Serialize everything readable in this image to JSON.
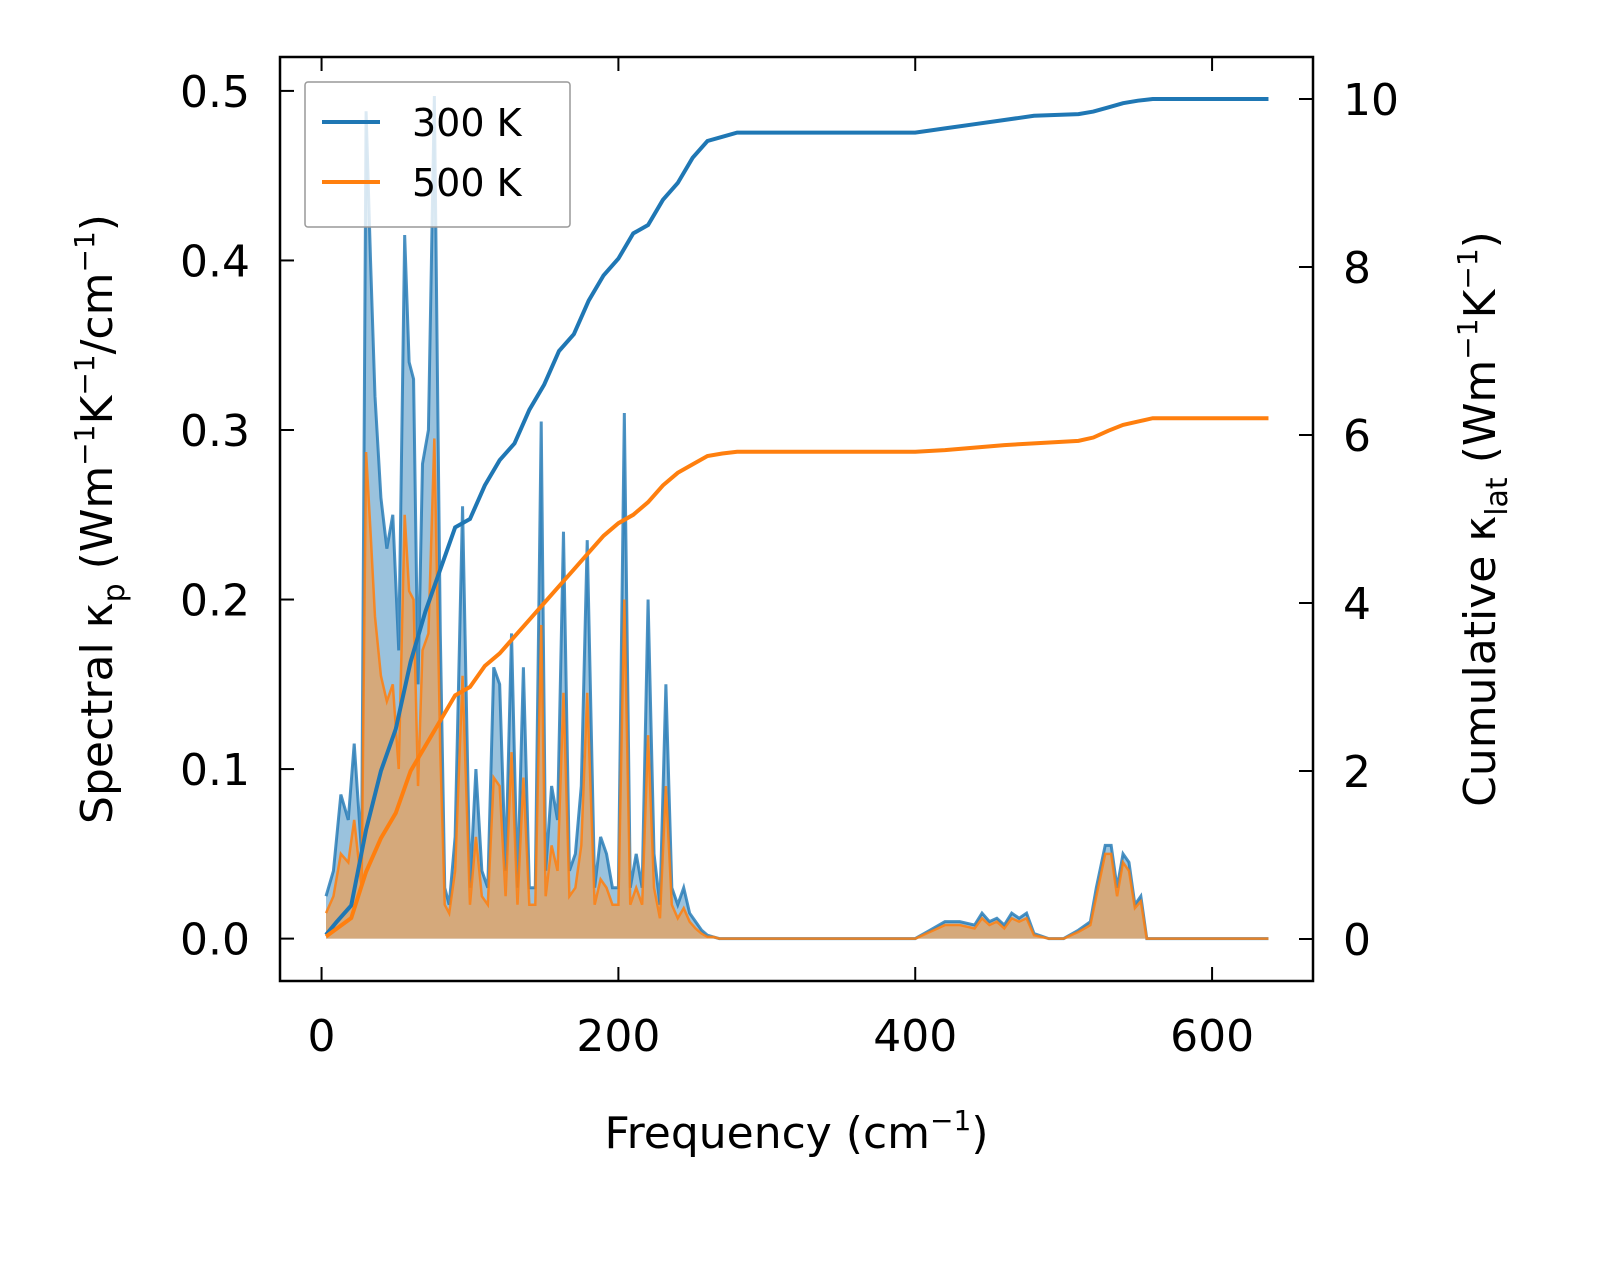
{
  "chart_data": {
    "type": "line",
    "xlabel": {
      "base": "Frequency (cm",
      "sup": "−1",
      "tail": ")"
    },
    "ylabel_left": {
      "pre": "Spectral κ",
      "sub": "p",
      "mid": " (Wm",
      "sup1": "−1",
      "k": "K",
      "sup2": "−1",
      "tail1": "/cm",
      "sup3": "−1",
      "tail2": ")"
    },
    "ylabel_right": {
      "pre": "Cumulative κ",
      "sub": "lat",
      "mid": " (Wm",
      "sup1": "−1",
      "k": "K",
      "sup2": "−1",
      "tail": ")"
    },
    "xlim": [
      -28,
      668
    ],
    "ylim_left": [
      -0.025,
      0.52
    ],
    "ylim_right": [
      -0.5,
      10.5
    ],
    "xticks": [
      0,
      200,
      400,
      600
    ],
    "xtick_labels": [
      "0",
      "200",
      "400",
      "600"
    ],
    "yticks_left": [
      0.0,
      0.1,
      0.2,
      0.3,
      0.4,
      0.5
    ],
    "ytick_labels_left": [
      "0.0",
      "0.1",
      "0.2",
      "0.3",
      "0.4",
      "0.5"
    ],
    "yticks_right": [
      0,
      2,
      4,
      6,
      8,
      10
    ],
    "ytick_labels_right": [
      "0",
      "2",
      "4",
      "6",
      "8",
      "10"
    ],
    "legend": {
      "position": "upper-left",
      "entries": [
        "300 K",
        "500 K"
      ]
    },
    "colors": {
      "300K": "#1f77b4",
      "500K": "#ff7f0e",
      "fill300": "#1f77b4",
      "fill500": "#e8a05a"
    },
    "spectral_300K": {
      "x": [
        3,
        8,
        13,
        18,
        22,
        27,
        30,
        33,
        36,
        40,
        44,
        48,
        52,
        56,
        59,
        62,
        65,
        68,
        72,
        76,
        80,
        83,
        86,
        90,
        95,
        100,
        104,
        108,
        112,
        116,
        120,
        124,
        128,
        132,
        136,
        140,
        144,
        148,
        151,
        155,
        159,
        163,
        167,
        171,
        175,
        179,
        184,
        188,
        192,
        196,
        200,
        204,
        208,
        212,
        216,
        220,
        224,
        228,
        232,
        236,
        240,
        244,
        248,
        252,
        256,
        260,
        264,
        268,
        272,
        276,
        282,
        290,
        300,
        320,
        400,
        410,
        420,
        430,
        440,
        445,
        450,
        455,
        460,
        465,
        470,
        475,
        480,
        490,
        500,
        510,
        518,
        522,
        528,
        532,
        536,
        540,
        544,
        548,
        552,
        556,
        560,
        570,
        600,
        638
      ],
      "y": [
        0.025,
        0.04,
        0.085,
        0.07,
        0.115,
        0.05,
        0.488,
        0.4,
        0.32,
        0.26,
        0.23,
        0.25,
        0.17,
        0.415,
        0.34,
        0.33,
        0.15,
        0.28,
        0.3,
        0.497,
        0.18,
        0.03,
        0.02,
        0.06,
        0.255,
        0.03,
        0.1,
        0.04,
        0.03,
        0.16,
        0.15,
        0.04,
        0.18,
        0.03,
        0.16,
        0.03,
        0.03,
        0.305,
        0.04,
        0.09,
        0.07,
        0.24,
        0.04,
        0.05,
        0.09,
        0.235,
        0.03,
        0.06,
        0.05,
        0.03,
        0.03,
        0.31,
        0.03,
        0.05,
        0.03,
        0.2,
        0.05,
        0.02,
        0.15,
        0.03,
        0.02,
        0.03,
        0.015,
        0.01,
        0.005,
        0.002,
        0.001,
        0.0,
        0.0,
        0.0,
        0.0,
        0.0,
        0.0,
        0.0,
        0.0,
        0.005,
        0.01,
        0.01,
        0.008,
        0.015,
        0.01,
        0.012,
        0.008,
        0.015,
        0.012,
        0.015,
        0.003,
        0.0,
        0.0,
        0.005,
        0.01,
        0.03,
        0.055,
        0.055,
        0.03,
        0.05,
        0.045,
        0.02,
        0.025,
        0.0,
        0.0,
        0.0,
        0.0,
        0.0
      ]
    },
    "spectral_500K": {
      "x": [
        3,
        8,
        13,
        18,
        22,
        27,
        30,
        33,
        36,
        40,
        44,
        48,
        52,
        56,
        59,
        62,
        65,
        68,
        72,
        76,
        80,
        83,
        86,
        90,
        95,
        100,
        104,
        108,
        112,
        116,
        120,
        124,
        128,
        132,
        136,
        140,
        144,
        148,
        151,
        155,
        159,
        163,
        167,
        171,
        175,
        179,
        184,
        188,
        192,
        196,
        200,
        204,
        208,
        212,
        216,
        220,
        224,
        228,
        232,
        236,
        240,
        244,
        248,
        252,
        256,
        260,
        264,
        268,
        272,
        276,
        282,
        290,
        300,
        320,
        400,
        410,
        420,
        430,
        440,
        445,
        450,
        455,
        460,
        465,
        470,
        475,
        480,
        490,
        500,
        510,
        518,
        522,
        528,
        532,
        536,
        540,
        544,
        548,
        552,
        556,
        560,
        570,
        600,
        638
      ],
      "y": [
        0.015,
        0.025,
        0.05,
        0.045,
        0.07,
        0.03,
        0.287,
        0.24,
        0.19,
        0.155,
        0.14,
        0.15,
        0.1,
        0.25,
        0.205,
        0.2,
        0.09,
        0.17,
        0.18,
        0.295,
        0.11,
        0.02,
        0.015,
        0.04,
        0.155,
        0.02,
        0.06,
        0.025,
        0.02,
        0.095,
        0.09,
        0.025,
        0.11,
        0.02,
        0.095,
        0.02,
        0.02,
        0.185,
        0.025,
        0.055,
        0.04,
        0.145,
        0.025,
        0.03,
        0.055,
        0.145,
        0.02,
        0.035,
        0.03,
        0.02,
        0.02,
        0.2,
        0.02,
        0.03,
        0.02,
        0.12,
        0.03,
        0.012,
        0.09,
        0.02,
        0.012,
        0.018,
        0.01,
        0.006,
        0.003,
        0.001,
        0.001,
        0.0,
        0.0,
        0.0,
        0.0,
        0.0,
        0.0,
        0.0,
        0.0,
        0.004,
        0.008,
        0.008,
        0.006,
        0.012,
        0.008,
        0.01,
        0.006,
        0.012,
        0.01,
        0.012,
        0.002,
        0.0,
        0.0,
        0.004,
        0.008,
        0.025,
        0.05,
        0.05,
        0.025,
        0.045,
        0.04,
        0.018,
        0.022,
        0.0,
        0.0,
        0.0,
        0.0,
        0.0
      ]
    },
    "cumulative_300K": {
      "x": [
        3,
        10,
        20,
        30,
        40,
        50,
        60,
        70,
        80,
        90,
        100,
        110,
        120,
        130,
        140,
        150,
        160,
        170,
        180,
        190,
        200,
        210,
        220,
        230,
        240,
        250,
        260,
        270,
        280,
        300,
        350,
        400,
        420,
        440,
        460,
        480,
        510,
        520,
        530,
        540,
        550,
        560,
        600,
        638
      ],
      "y": [
        0.05,
        0.2,
        0.4,
        1.3,
        2.0,
        2.5,
        3.3,
        3.9,
        4.4,
        4.9,
        5.0,
        5.4,
        5.7,
        5.9,
        6.3,
        6.6,
        7.0,
        7.2,
        7.6,
        7.9,
        8.1,
        8.4,
        8.5,
        8.8,
        9.0,
        9.3,
        9.5,
        9.55,
        9.6,
        9.6,
        9.6,
        9.6,
        9.65,
        9.7,
        9.75,
        9.8,
        9.82,
        9.85,
        9.9,
        9.95,
        9.98,
        10.0,
        10.0,
        10.0
      ]
    },
    "cumulative_500K": {
      "x": [
        3,
        10,
        20,
        30,
        40,
        50,
        60,
        70,
        80,
        90,
        100,
        110,
        120,
        130,
        140,
        150,
        160,
        170,
        180,
        190,
        200,
        210,
        220,
        230,
        240,
        250,
        260,
        270,
        280,
        300,
        350,
        400,
        420,
        440,
        460,
        480,
        510,
        520,
        530,
        540,
        550,
        560,
        600,
        638
      ],
      "y": [
        0.03,
        0.12,
        0.25,
        0.8,
        1.2,
        1.5,
        2.0,
        2.3,
        2.6,
        2.9,
        3.0,
        3.25,
        3.4,
        3.6,
        3.8,
        4.0,
        4.2,
        4.4,
        4.6,
        4.8,
        4.95,
        5.05,
        5.2,
        5.4,
        5.55,
        5.65,
        5.75,
        5.78,
        5.8,
        5.8,
        5.8,
        5.8,
        5.82,
        5.85,
        5.88,
        5.9,
        5.93,
        5.97,
        6.05,
        6.12,
        6.16,
        6.2,
        6.2,
        6.2
      ]
    }
  }
}
